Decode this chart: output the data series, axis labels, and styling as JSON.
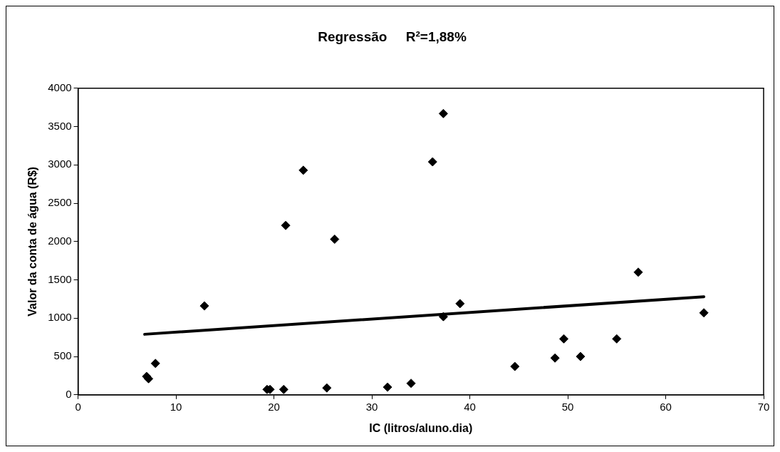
{
  "chart_data": {
    "type": "scatter",
    "title": "Regressão     R²=1,88%",
    "xlabel": "IC (litros/aluno.dia)",
    "ylabel": "Valor da conta de água (R$)",
    "xlim": [
      0,
      70
    ],
    "xticks": [
      0,
      10,
      20,
      30,
      40,
      50,
      60,
      70
    ],
    "ylim": [
      0,
      4000
    ],
    "yticks": [
      0,
      500,
      1000,
      1500,
      2000,
      2500,
      3000,
      3500,
      4000
    ],
    "marker": "diamond",
    "series": [
      {
        "color": "#000000",
        "x": [
          7.0,
          7.2,
          7.9,
          12.9,
          19.3,
          19.6,
          21.0,
          21.2,
          23.0,
          25.4,
          26.2,
          31.6,
          34.0,
          36.2,
          37.3,
          37.3,
          39.0,
          44.6,
          48.7,
          49.6,
          51.3,
          55.0,
          57.2,
          63.9
        ],
        "values": [
          240,
          210,
          410,
          1160,
          70,
          70,
          70,
          2210,
          2930,
          90,
          2030,
          100,
          150,
          3040,
          3670,
          1020,
          1190,
          370,
          480,
          730,
          500,
          730,
          1600,
          1070
        ]
      },
      {
        "type": "line",
        "color": "#000000",
        "x": [
          6.8,
          63.9
        ],
        "values": [
          790,
          1280
        ],
        "marker": "none"
      }
    ]
  }
}
